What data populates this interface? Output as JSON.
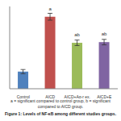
{
  "chart_data": {
    "type": "bar",
    "categories": [
      "Control",
      "AICD",
      "AICD+Ag-r ex.",
      "AICD+E"
    ],
    "values": [
      25,
      105,
      67,
      68
    ],
    "errors": [
      3,
      5,
      4,
      4
    ],
    "colors": [
      "#4f81bd",
      "#c0504d",
      "#9bbb59",
      "#8064a2"
    ],
    "ylim": [
      0,
      120
    ],
    "tick_labels": "x",
    "annotations": [
      {
        "category": "AICD",
        "text": "a"
      },
      {
        "category": "AICD+Ag-r ex.",
        "text": "ab"
      },
      {
        "category": "AICD+E",
        "text": "ab"
      }
    ],
    "note": "a = significant compared to control group, b = significant compared to AICD group.",
    "caption": "Figure 1:  Levels of NF-κB among different studies groups."
  }
}
